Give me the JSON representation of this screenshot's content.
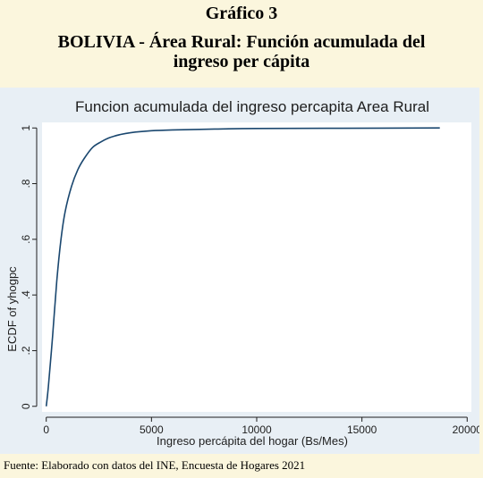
{
  "header": {
    "number": "Gráfico 3",
    "title_line1": "BOLIVIA - Área Rural: Función acumulada del",
    "title_line2": "ingreso per cápita"
  },
  "source": "Fuente: Elaborado con datos del INE, Encuesta de Hogares 2021",
  "colors": {
    "background": "#fbf6dd",
    "plot_frame": "#e8eff5",
    "plot_area": "#ffffff",
    "line": "#1a476f"
  },
  "chart_data": {
    "type": "line",
    "title": "Funcion acumulada del ingreso percapita Area Rural",
    "xlabel": "Ingreso percápita del hogar (Bs/Mes)",
    "ylabel": "ECDF of yhogpc",
    "xlim": [
      -200,
      20200
    ],
    "ylim": [
      -0.02,
      1.02
    ],
    "xticks": [
      0,
      5000,
      10000,
      15000,
      20000
    ],
    "xtick_labels": [
      "0",
      "5000",
      "10000",
      "15000",
      "20000"
    ],
    "yticks": [
      0,
      0.2,
      0.4,
      0.6,
      0.8,
      1
    ],
    "ytick_labels": [
      "0",
      ".2",
      ".4",
      ".6",
      ".8",
      "1"
    ],
    "grid": false,
    "series": [
      {
        "x": [
          0,
          100,
          300,
          500,
          700,
          900,
          1200,
          1500,
          1800,
          2200,
          2600,
          3000,
          3500,
          4000,
          5000,
          6000,
          8000,
          10000,
          14000,
          18700
        ],
        "y": [
          0,
          0.07,
          0.25,
          0.45,
          0.6,
          0.7,
          0.79,
          0.85,
          0.89,
          0.93,
          0.95,
          0.965,
          0.976,
          0.983,
          0.99,
          0.993,
          0.996,
          0.998,
          0.999,
          1.0
        ]
      }
    ]
  }
}
